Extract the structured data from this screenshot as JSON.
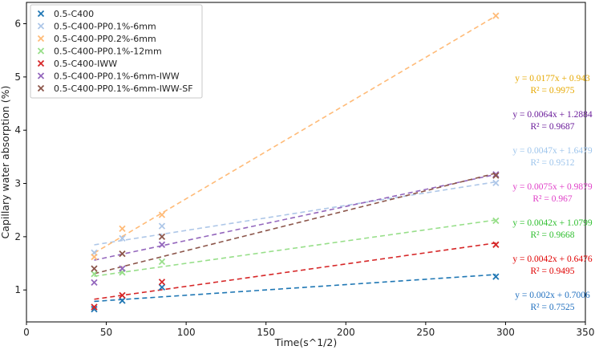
{
  "chart_data": {
    "type": "scatter",
    "xlabel": "Time(s^1/2)",
    "ylabel": "Capillary water absorption (%)",
    "xlim": [
      0,
      350
    ],
    "ylim": [
      0.4,
      6.4
    ],
    "xticks": [
      0,
      50,
      100,
      150,
      200,
      250,
      300,
      350
    ],
    "yticks": [
      1,
      2,
      3,
      4,
      5,
      6
    ],
    "grid": false,
    "legend_position": "top-left",
    "x": [
      42.43,
      60,
      84.85,
      293.94
    ],
    "series": [
      {
        "name": "0.5-C400",
        "color": "#1f77b4",
        "y": [
          0.64,
          0.8,
          1.05,
          1.25
        ],
        "fit": {
          "slope": 0.002,
          "intercept": 0.7006
        },
        "equation": "y = 0.002x + 0.7006",
        "r2": "R² = 0.7525"
      },
      {
        "name": "0.5-C400-PP0.1%-6mm",
        "color": "#aec7e8",
        "y": [
          1.7,
          1.97,
          2.2,
          3.01
        ],
        "fit": {
          "slope": 0.0047,
          "intercept": 1.6479
        },
        "equation": "y = 0.0047x + 1.6479",
        "r2": "R² = 0.9512"
      },
      {
        "name": "0.5-C400-PP0.2%-6mm",
        "color": "#ffbb78",
        "y": [
          1.62,
          2.15,
          2.41,
          6.15
        ],
        "fit": {
          "slope": 0.0177,
          "intercept": 0.943
        },
        "equation": "y = 0.0177x + 0.943",
        "r2": "R² = 0.9975"
      },
      {
        "name": "0.5-C400-PP0.1%-12mm",
        "color": "#98df8a",
        "y": [
          1.3,
          1.33,
          1.53,
          2.3
        ],
        "fit": {
          "slope": 0.0042,
          "intercept": 1.0799
        },
        "equation": "y = 0.0042x + 1.0799",
        "r2": "R² = 0.9668"
      },
      {
        "name": "0.5-C400-IWW",
        "color": "#d62728",
        "y": [
          0.68,
          0.9,
          1.15,
          1.85
        ],
        "fit": {
          "slope": 0.0042,
          "intercept": 0.6476
        },
        "equation": "y = 0.0042x + 0.6476",
        "r2": "R² = 0.9495"
      },
      {
        "name": "0.5-C400-PP0.1%-6mm-IWW",
        "color": "#9467bd",
        "y": [
          1.14,
          1.4,
          1.85,
          3.17
        ],
        "fit": {
          "slope": 0.0064,
          "intercept": 1.2884
        },
        "equation": "y = 0.0064x + 1.2884",
        "r2": "R² = 0.9687"
      },
      {
        "name": "0.5-C400-PP0.1%-6mm-IWW-SF",
        "color": "#8c564b",
        "y": [
          1.4,
          1.68,
          2.0,
          3.15
        ],
        "fit": {
          "slope": 0.0075,
          "intercept": 0.9879
        },
        "equation": "y = 0.0075x + 0.9879",
        "r2": "R² = 0.967"
      }
    ],
    "annotations": [
      {
        "series": 2,
        "text_color": "#e6a800"
      },
      {
        "series": 5,
        "text_color": "#6a1b9a"
      },
      {
        "series": 1,
        "text_color": "#9ec5ec"
      },
      {
        "series": 6,
        "text_color": "#e040c8"
      },
      {
        "series": 3,
        "text_color": "#2fbf2f"
      },
      {
        "series": 4,
        "text_color": "#e00000"
      },
      {
        "series": 0,
        "text_color": "#1f6fbf"
      }
    ]
  }
}
